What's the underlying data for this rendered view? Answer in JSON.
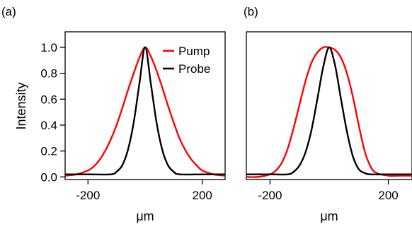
{
  "chart_data": [
    {
      "type": "line",
      "panel_label": "(a)",
      "xlabel": "μm",
      "ylabel": "Intensity",
      "xlim": [
        -280,
        280
      ],
      "ylim": [
        -0.02,
        1.12
      ],
      "x_ticks": [
        {
          "value": -200,
          "label": "-200"
        },
        {
          "value": 200,
          "label": "200"
        }
      ],
      "y_ticks": [
        {
          "value": 0.0,
          "label": "0.0"
        },
        {
          "value": 0.2,
          "label": "0.2"
        },
        {
          "value": 0.4,
          "label": "0.4"
        },
        {
          "value": 0.6,
          "label": "0.6"
        },
        {
          "value": 0.8,
          "label": "0.8"
        },
        {
          "value": 1.0,
          "label": "1.0"
        }
      ],
      "legend": {
        "placement": "top-right"
      },
      "series": [
        {
          "name": "Pump",
          "color": "#ff0000",
          "x": [
            -280,
            -240,
            -200,
            -180,
            -160,
            -140,
            -120,
            -100,
            -80,
            -60,
            -40,
            -20,
            0,
            20,
            40,
            60,
            80,
            100,
            120,
            140,
            160,
            180,
            200,
            240,
            280
          ],
          "values": [
            0.01,
            0.02,
            0.05,
            0.08,
            0.13,
            0.2,
            0.29,
            0.4,
            0.53,
            0.67,
            0.8,
            0.92,
            1.0,
            0.93,
            0.82,
            0.69,
            0.55,
            0.42,
            0.3,
            0.21,
            0.14,
            0.09,
            0.05,
            0.02,
            0.01
          ]
        },
        {
          "name": "Probe",
          "color": "#000000",
          "x": [
            -280,
            -200,
            -120,
            -100,
            -80,
            -60,
            -40,
            -20,
            0,
            20,
            40,
            60,
            80,
            100,
            120,
            200,
            280
          ],
          "values": [
            0.02,
            0.02,
            0.02,
            0.04,
            0.09,
            0.21,
            0.42,
            0.72,
            1.0,
            0.72,
            0.42,
            0.21,
            0.09,
            0.04,
            0.02,
            0.02,
            0.02
          ]
        }
      ]
    },
    {
      "type": "line",
      "panel_label": "(b)",
      "xlabel": "μm",
      "xlim": [
        -280,
        280
      ],
      "ylim": [
        -0.02,
        1.12
      ],
      "x_ticks": [
        {
          "value": -200,
          "label": "-200"
        },
        {
          "value": 200,
          "label": "200"
        }
      ],
      "series": [
        {
          "color": "#ff0000",
          "x": [
            -280,
            -240,
            -200,
            -180,
            -160,
            -140,
            -120,
            -100,
            -80,
            -60,
            -40,
            -20,
            0,
            20,
            40,
            60,
            80,
            100,
            120,
            140,
            160,
            200,
            240,
            280
          ],
          "values": [
            0.0,
            0.0,
            0.02,
            0.05,
            0.11,
            0.22,
            0.38,
            0.56,
            0.74,
            0.88,
            0.96,
            1.0,
            1.0,
            0.98,
            0.92,
            0.8,
            0.62,
            0.4,
            0.2,
            0.08,
            0.03,
            0.01,
            0.01,
            0.01
          ]
        },
        {
          "color": "#000000",
          "x": [
            -280,
            -200,
            -140,
            -120,
            -100,
            -80,
            -60,
            -40,
            -20,
            0,
            20,
            40,
            60,
            80,
            100,
            120,
            140,
            200,
            280
          ],
          "values": [
            0.02,
            0.02,
            0.02,
            0.04,
            0.09,
            0.19,
            0.36,
            0.6,
            0.85,
            1.0,
            0.86,
            0.6,
            0.35,
            0.16,
            0.06,
            0.03,
            0.02,
            0.02,
            0.02
          ]
        }
      ]
    }
  ]
}
